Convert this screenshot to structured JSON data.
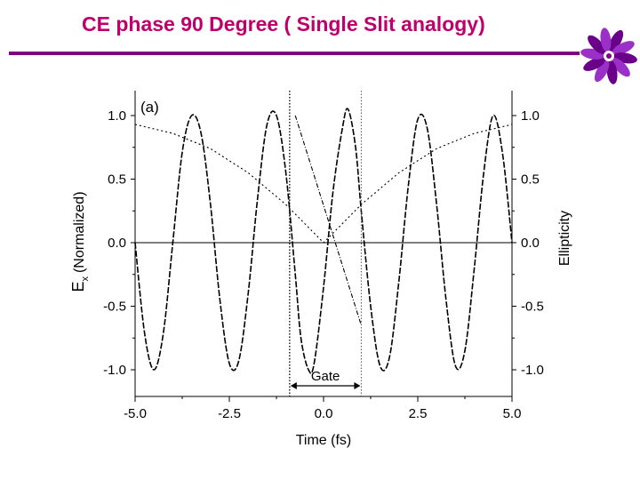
{
  "slide": {
    "title": "CE phase 90 Degree ( Single Slit analogy)",
    "title_color": "#c0006a",
    "rule_color": "#800080",
    "logo_icon": "purple-flower-logo-icon"
  },
  "chart_data": {
    "type": "line",
    "panel_label": "(a)",
    "xlabel": "Time (fs)",
    "ylabel_main": "E",
    "ylabel_sub": "x",
    "ylabel_rest": "(Normalized)",
    "ylabel_right": "Ellipticity",
    "xlim": [
      -5.0,
      5.0
    ],
    "ylim": [
      -1.1,
      1.1
    ],
    "xticks": [
      "-5.0",
      "-2.5",
      "0.0",
      "2.5",
      "5.0"
    ],
    "xtick_values": [
      -5.0,
      -2.5,
      0.0,
      2.5,
      5.0
    ],
    "yticks": [
      "1.0",
      "0.5",
      "0.0",
      "-0.5",
      "-1.0"
    ],
    "ytick_values": [
      1.0,
      0.5,
      0.0,
      -0.5,
      -1.0
    ],
    "gate_label": "Gate",
    "gate_range": [
      -0.9,
      1.0
    ],
    "zero_line": 0.0,
    "series": [
      {
        "style": "dashed",
        "points": [
          [
            -5.0,
            0.0
          ],
          [
            -4.75,
            -0.71
          ],
          [
            -4.5,
            -1.0
          ],
          [
            -4.25,
            -0.71
          ],
          [
            -4.0,
            0.0
          ],
          [
            -3.75,
            0.71
          ],
          [
            -3.5,
            1.0
          ],
          [
            -3.25,
            0.86
          ],
          [
            -3.0,
            0.3
          ],
          [
            -2.75,
            -0.45
          ],
          [
            -2.5,
            -0.95
          ],
          [
            -2.25,
            -0.93
          ],
          [
            -2.0,
            -0.4
          ],
          [
            -1.75,
            0.35
          ],
          [
            -1.5,
            0.93
          ],
          [
            -1.25,
            1.0
          ],
          [
            -1.0,
            0.55
          ],
          [
            -0.75,
            -0.25
          ],
          [
            -0.6,
            -0.75
          ],
          [
            -0.4,
            -1.0
          ],
          [
            -0.25,
            -0.95
          ],
          [
            0.0,
            -0.35
          ],
          [
            0.25,
            0.4
          ],
          [
            0.5,
            0.9
          ],
          [
            0.65,
            1.05
          ],
          [
            0.85,
            0.75
          ],
          [
            1.0,
            0.25
          ],
          [
            1.25,
            -0.5
          ],
          [
            1.5,
            -0.97
          ],
          [
            1.75,
            -0.9
          ],
          [
            2.0,
            -0.3
          ],
          [
            2.25,
            0.45
          ],
          [
            2.5,
            0.97
          ],
          [
            2.75,
            0.9
          ],
          [
            3.0,
            0.3
          ],
          [
            3.25,
            -0.45
          ],
          [
            3.5,
            -0.97
          ],
          [
            3.75,
            -0.85
          ],
          [
            4.0,
            -0.2
          ],
          [
            4.25,
            0.55
          ],
          [
            4.5,
            1.0
          ],
          [
            4.75,
            0.7
          ],
          [
            5.0,
            0.0
          ]
        ]
      },
      {
        "style": "dotted",
        "points": [
          [
            -5.0,
            0.93
          ],
          [
            -4.0,
            0.86
          ],
          [
            -3.0,
            0.74
          ],
          [
            -2.0,
            0.55
          ],
          [
            -1.0,
            0.3
          ],
          [
            -0.5,
            0.15
          ],
          [
            0.0,
            0.0
          ],
          [
            0.5,
            0.15
          ],
          [
            1.0,
            0.3
          ],
          [
            2.0,
            0.55
          ],
          [
            3.0,
            0.74
          ],
          [
            4.0,
            0.86
          ],
          [
            5.0,
            0.93
          ]
        ]
      },
      {
        "style": "dash-dot",
        "points": [
          [
            -0.75,
            1.0
          ],
          [
            1.0,
            -0.65
          ]
        ]
      }
    ]
  }
}
